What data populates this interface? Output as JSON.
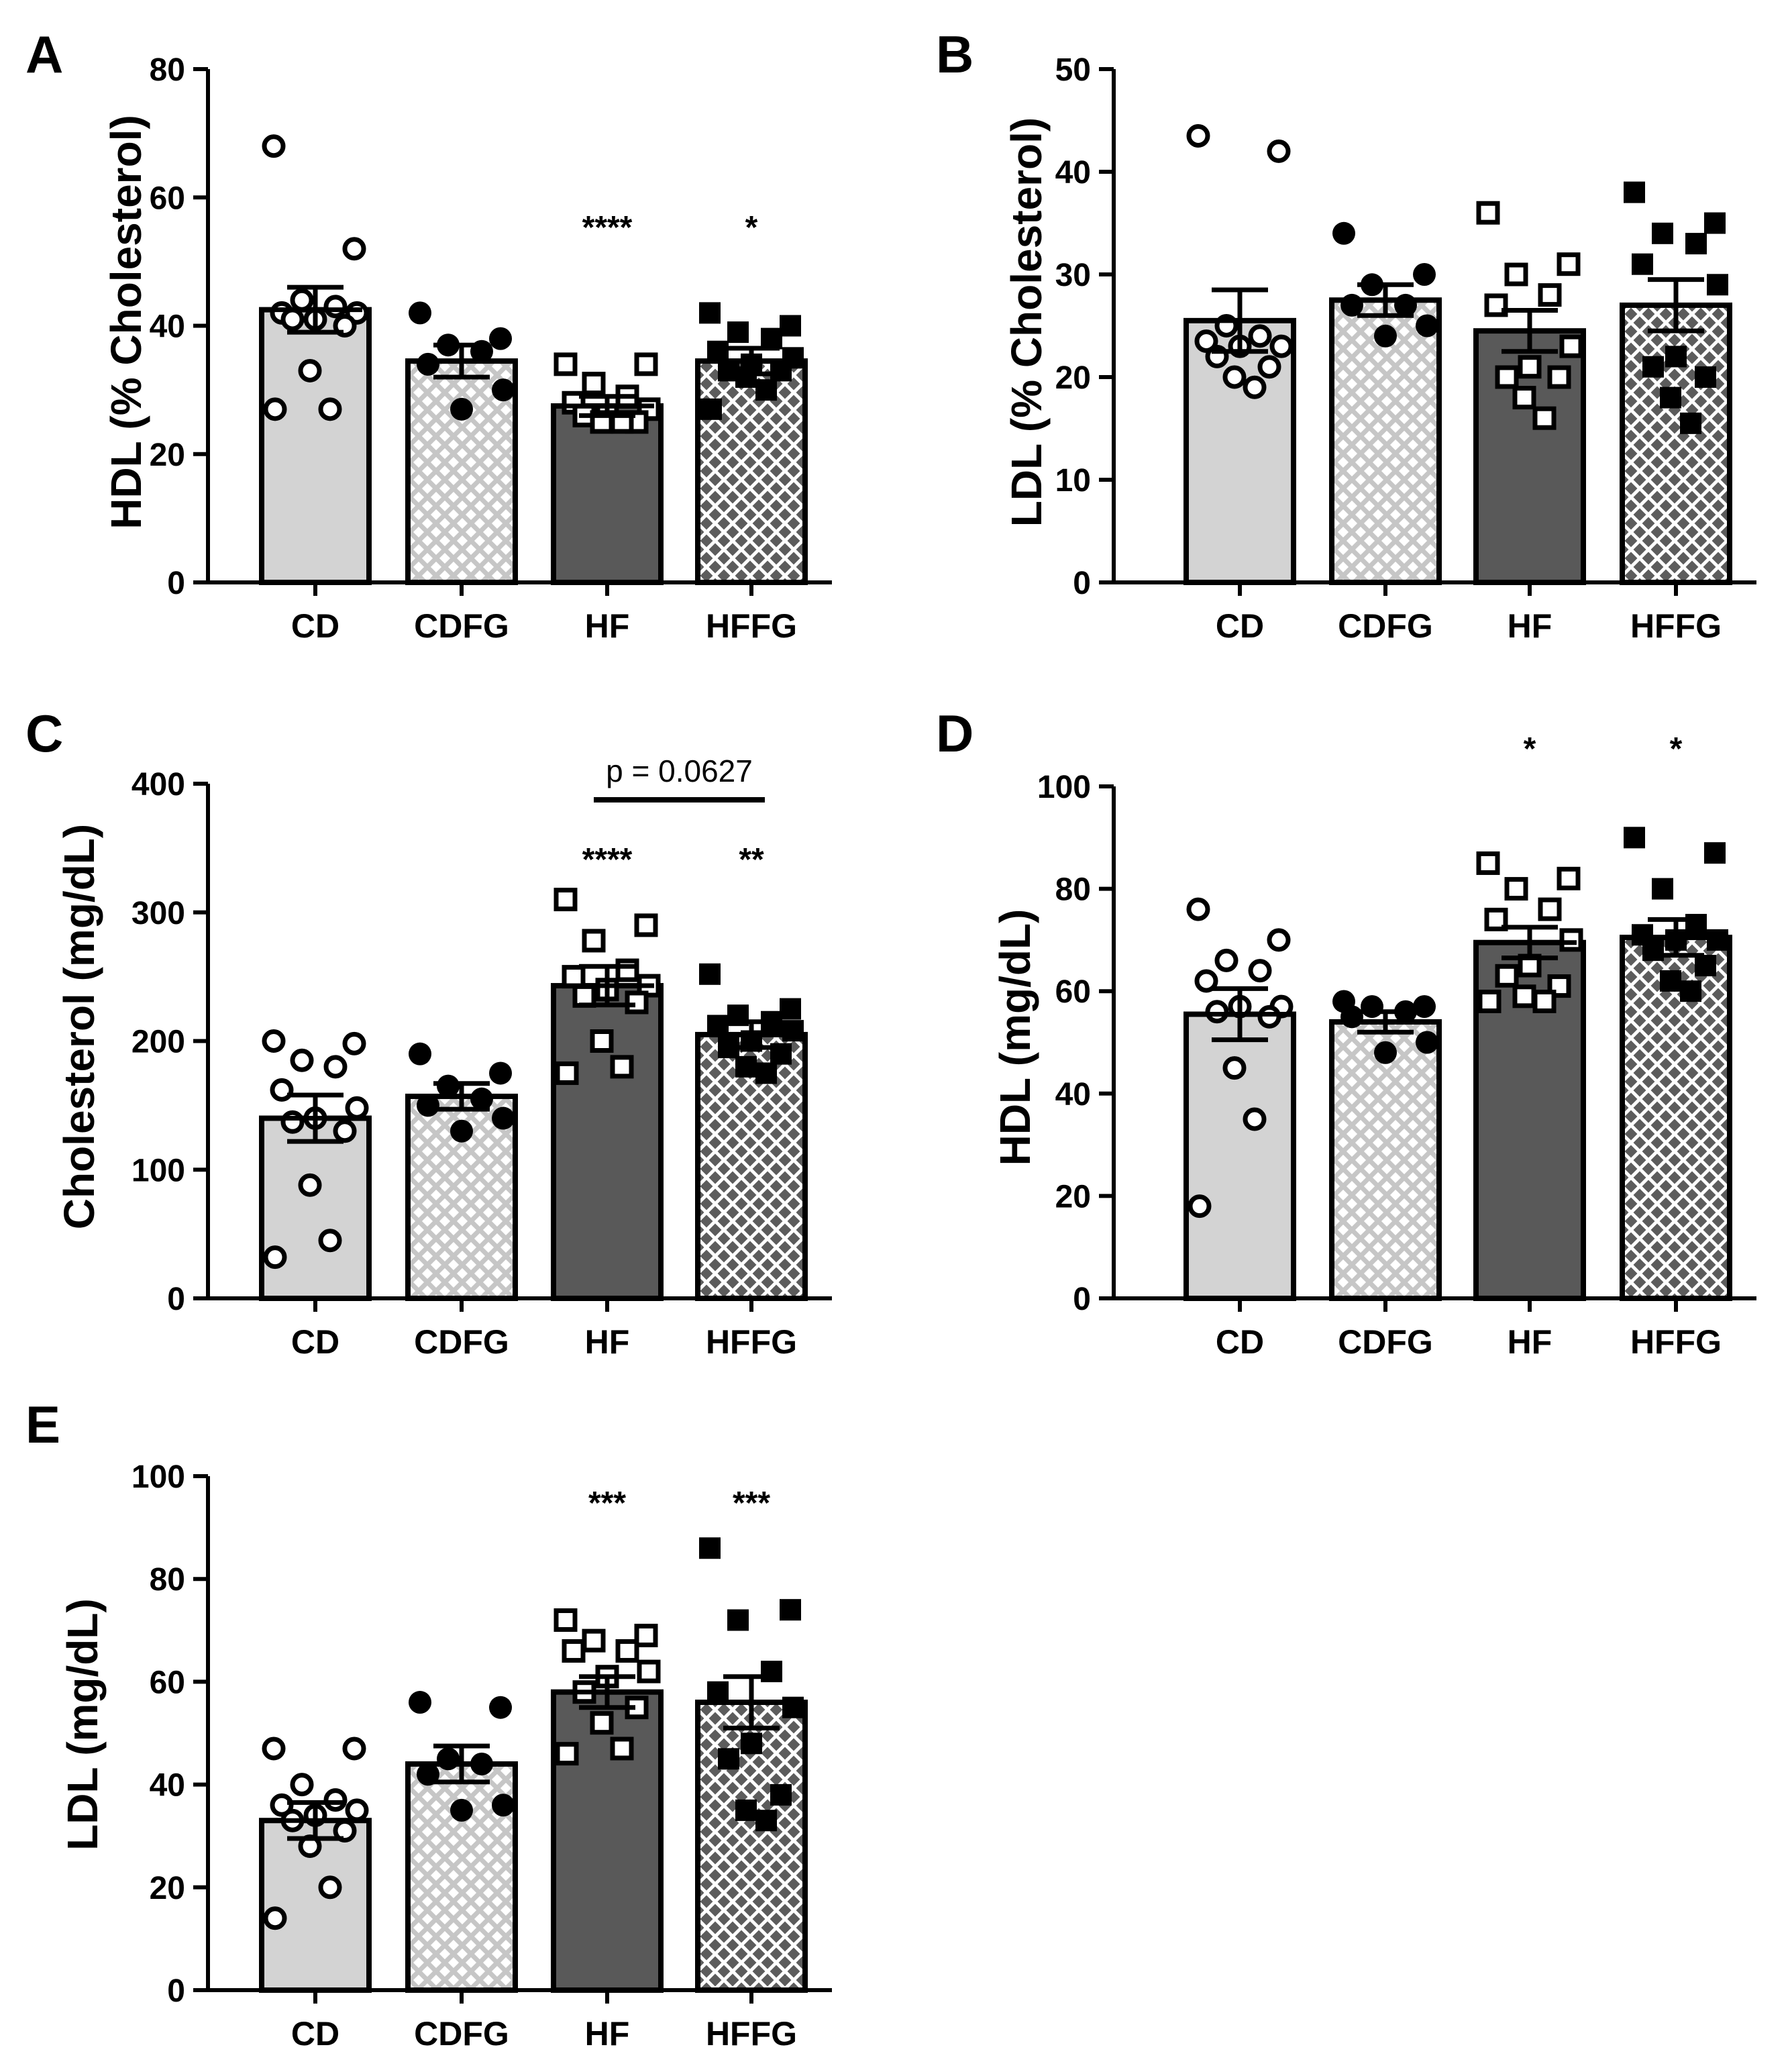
{
  "colors": {
    "CD": "#d3d3d3",
    "CDFG_bg": "#ffffff",
    "CDFG_pattern": "#c8c8c8",
    "HF": "#595959",
    "HFFG_bg": "#5e5e5e",
    "HFFG_pattern": "#ffffff",
    "axis": "#000000"
  },
  "chart_data": [
    {
      "panel": "A",
      "type": "bar",
      "ylabel": "HDL (% Cholesterol)",
      "categories": [
        "CD",
        "CDFG",
        "HF",
        "HFFG"
      ],
      "ylim": [
        0,
        80
      ],
      "yticks": [
        0,
        20,
        40,
        60,
        80
      ],
      "values": [
        42.5,
        34.5,
        27.5,
        34.5
      ],
      "sem": [
        3.5,
        2.5,
        1.5,
        2.0
      ],
      "points": [
        [
          68,
          52,
          44,
          43,
          42,
          42,
          41,
          41,
          40,
          33,
          27,
          27
        ],
        [
          42,
          38,
          37,
          36,
          34,
          30,
          27
        ],
        [
          34,
          34,
          31,
          29,
          28,
          27,
          26,
          26,
          25,
          25,
          25
        ],
        [
          42,
          40,
          39,
          38,
          36,
          35,
          34,
          33,
          33,
          32,
          30,
          27
        ]
      ],
      "significance": [
        "",
        "",
        "****",
        "*"
      ]
    },
    {
      "panel": "B",
      "type": "bar",
      "ylabel": "LDL (% Cholesterol)",
      "categories": [
        "CD",
        "CDFG",
        "HF",
        "HFFG"
      ],
      "ylim": [
        0,
        50
      ],
      "yticks": [
        0,
        10,
        20,
        30,
        40,
        50
      ],
      "values": [
        25.5,
        27.5,
        24.5,
        27.0
      ],
      "sem": [
        3.0,
        1.5,
        2.0,
        2.5
      ],
      "points": [
        [
          43.5,
          42,
          25,
          24,
          23.5,
          23,
          23,
          22,
          21,
          20,
          19
        ],
        [
          34,
          30,
          29,
          27,
          27,
          25,
          24
        ],
        [
          36,
          31,
          30,
          28,
          27,
          23,
          21,
          20,
          20,
          18,
          16
        ],
        [
          38,
          35,
          34,
          33,
          31,
          29,
          22,
          21,
          20,
          18,
          15.5
        ]
      ],
      "significance": [
        "",
        "",
        "",
        ""
      ]
    },
    {
      "panel": "C",
      "type": "bar",
      "ylabel": "Cholesterol (mg/dL)",
      "categories": [
        "CD",
        "CDFG",
        "HF",
        "HFFG"
      ],
      "ylim": [
        0,
        400
      ],
      "yticks": [
        0,
        100,
        200,
        300,
        400
      ],
      "values": [
        140,
        157,
        243,
        205
      ],
      "sem": [
        18,
        10,
        15,
        10
      ],
      "points": [
        [
          200,
          198,
          185,
          180,
          162,
          148,
          140,
          137,
          130,
          88,
          45,
          32
        ],
        [
          190,
          175,
          165,
          155,
          150,
          140,
          130
        ],
        [
          310,
          290,
          278,
          255,
          250,
          243,
          240,
          235,
          230,
          200,
          180,
          175
        ],
        [
          252,
          225,
          220,
          215,
          212,
          208,
          200,
          195,
          190,
          180,
          175
        ]
      ],
      "significance": [
        "",
        "",
        "****",
        "**"
      ],
      "comparison": {
        "from": 2,
        "to": 3,
        "label": "p = 0.0627"
      }
    },
    {
      "panel": "D",
      "type": "bar",
      "ylabel": "HDL (mg/dL)",
      "categories": [
        "CD",
        "CDFG",
        "HF",
        "HFFG"
      ],
      "ylim": [
        0,
        100
      ],
      "yticks": [
        0,
        20,
        40,
        60,
        80,
        100
      ],
      "values": [
        55.5,
        54.0,
        69.5,
        70.5
      ],
      "sem": [
        5.0,
        2.0,
        3.0,
        3.5
      ],
      "points": [
        [
          76,
          70,
          66,
          64,
          62,
          57,
          57,
          56,
          55,
          45,
          35,
          18
        ],
        [
          58,
          57,
          57,
          56,
          55,
          50,
          48
        ],
        [
          85,
          82,
          80,
          76,
          74,
          70,
          65,
          63,
          61,
          59,
          58,
          58
        ],
        [
          90,
          87,
          80,
          73,
          71,
          70,
          70,
          68,
          65,
          62,
          60
        ]
      ],
      "significance": [
        "",
        "",
        "*",
        "*"
      ]
    },
    {
      "panel": "E",
      "type": "bar",
      "ylabel": "LDL (mg/dL)",
      "categories": [
        "CD",
        "CDFG",
        "HF",
        "HFFG"
      ],
      "ylim": [
        0,
        100
      ],
      "yticks": [
        0,
        20,
        40,
        60,
        80,
        100
      ],
      "values": [
        33,
        44,
        58,
        56
      ],
      "sem": [
        3.5,
        3.5,
        3.0,
        5.0
      ],
      "points": [
        [
          47,
          47,
          40,
          37,
          36,
          35,
          34,
          33,
          31,
          28,
          20,
          14
        ],
        [
          56,
          55,
          45,
          44,
          42,
          36,
          35
        ],
        [
          72,
          69,
          68,
          66,
          66,
          62,
          61,
          58,
          55,
          52,
          47,
          46
        ],
        [
          86,
          74,
          72,
          62,
          58,
          55,
          48,
          45,
          38,
          35,
          33
        ]
      ],
      "significance": [
        "",
        "",
        "***",
        "***"
      ]
    }
  ]
}
